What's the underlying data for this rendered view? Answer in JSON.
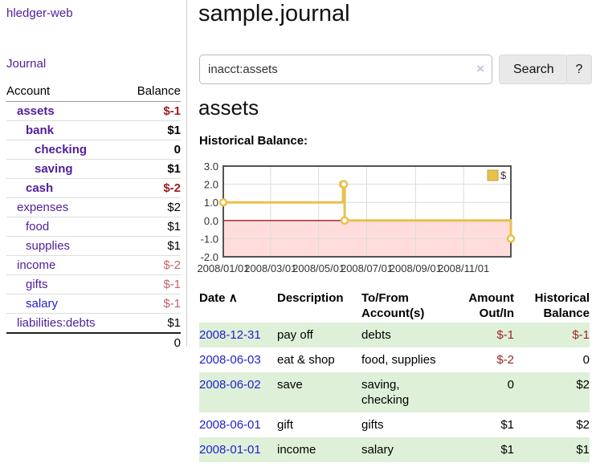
{
  "app": {
    "title": "hledger-web",
    "nav_journal": "Journal"
  },
  "sidebar": {
    "columns": {
      "account": "Account",
      "balance": "Balance"
    },
    "accounts": [
      {
        "name": "assets",
        "indent": 1,
        "in_query": true,
        "balance": "$-1"
      },
      {
        "name": "bank",
        "indent": 2,
        "in_query": true,
        "balance": "$1"
      },
      {
        "name": "checking",
        "indent": 3,
        "in_query": true,
        "balance": "0"
      },
      {
        "name": "saving",
        "indent": 3,
        "in_query": true,
        "balance": "$1"
      },
      {
        "name": "cash",
        "indent": 2,
        "in_query": true,
        "balance": "$-2"
      },
      {
        "name": "expenses",
        "indent": 1,
        "in_query": false,
        "balance": "$2"
      },
      {
        "name": "food",
        "indent": 2,
        "in_query": false,
        "balance": "$1"
      },
      {
        "name": "supplies",
        "indent": 2,
        "in_query": false,
        "balance": "$1"
      },
      {
        "name": "income",
        "indent": 1,
        "in_query": false,
        "balance": "$-2"
      },
      {
        "name": "gifts",
        "indent": 2,
        "in_query": false,
        "balance": "$-1"
      },
      {
        "name": "salary",
        "indent": 2,
        "in_query": false,
        "balance": "$-1",
        "link_blue": true
      },
      {
        "name": "liabilities:debts",
        "indent": 1,
        "in_query": false,
        "balance": "$1"
      }
    ],
    "total": "0"
  },
  "header": {
    "title": "sample.journal"
  },
  "search": {
    "value": "inacct:assets",
    "clear_icon": "×",
    "button": "Search",
    "help_button": "?"
  },
  "main": {
    "account_heading": "assets",
    "chart_label": "Historical Balance:"
  },
  "chart_data": {
    "type": "line",
    "step": true,
    "title": "Historical Balance",
    "series": [
      {
        "name": "$",
        "color": "#e9c04a",
        "points": [
          [
            "2008-01-01",
            1
          ],
          [
            "2008-06-01",
            2
          ],
          [
            "2008-06-02",
            2
          ],
          [
            "2008-06-03",
            0
          ],
          [
            "2008-12-31",
            -1
          ]
        ]
      }
    ],
    "ylim": [
      -2,
      3
    ],
    "yticks": [
      "3.0",
      "2.0",
      "1.0",
      "0.0",
      "-1.0",
      "-2.0"
    ],
    "xticks": [
      "2008/01/01",
      "2008/03/01",
      "2008/05/01",
      "2008/07/01",
      "2008/09/01",
      "2008/11/01"
    ],
    "xrange": [
      "2008-01-01",
      "2008-12-31"
    ],
    "negative_fill": "#ffdddd",
    "zero_line_color": "#a01d1d",
    "legend_position": "top-right",
    "grid": true
  },
  "register": {
    "sort_icon": "∧",
    "headers": {
      "date": "Date",
      "description": "Description",
      "tofrom": "To/From Account(s)",
      "amount": "Amount Out/In",
      "historical": "Historical Balance"
    },
    "rows": [
      {
        "date": "2008-12-31",
        "description": "pay off",
        "tofrom": "debts",
        "amount": "$-1",
        "historical": "$-1",
        "shaded": true
      },
      {
        "date": "2008-06-03",
        "description": "eat & shop",
        "tofrom": "food, supplies",
        "amount": "$-2",
        "historical": "0",
        "shaded": false
      },
      {
        "date": "2008-06-02",
        "description": "save",
        "tofrom": "saving, checking",
        "amount": "0",
        "historical": "$2",
        "shaded": true
      },
      {
        "date": "2008-06-01",
        "description": "gift",
        "tofrom": "gifts",
        "amount": "$1",
        "historical": "$2",
        "shaded": false
      },
      {
        "date": "2008-01-01",
        "description": "income",
        "tofrom": "salary",
        "amount": "$1",
        "historical": "$1",
        "shaded": true
      }
    ]
  }
}
